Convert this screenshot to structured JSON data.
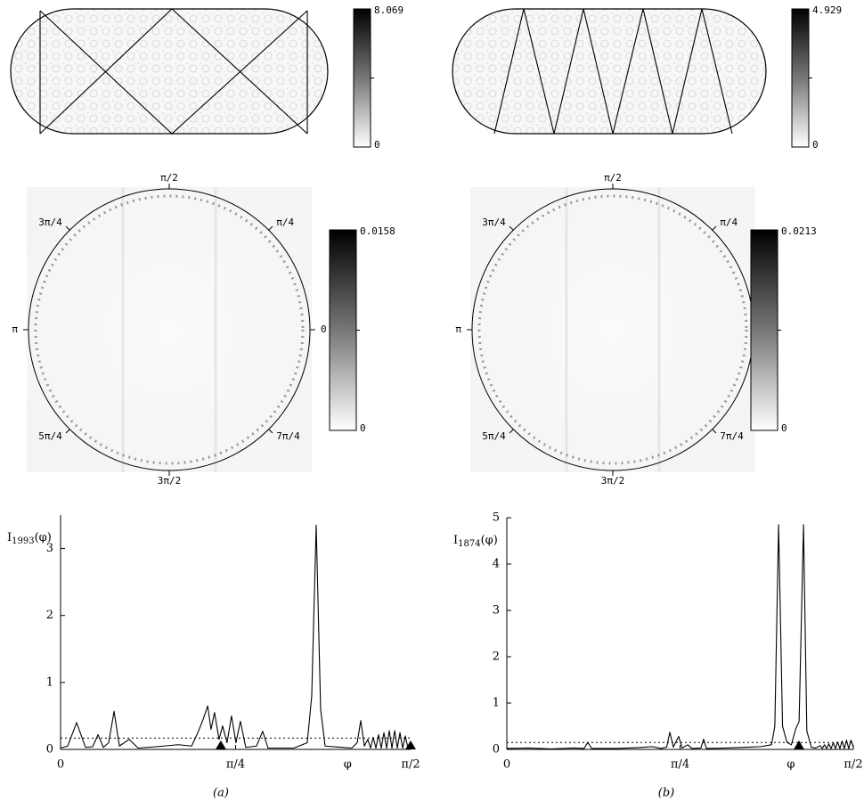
{
  "panels": [
    {
      "label": "(a)",
      "density_colorbar": {
        "max": 8.069,
        "min": 0
      },
      "polar_colorbar": {
        "max": 0.0158,
        "min": 0
      },
      "polar_labels": [
        0,
        "π/4",
        "π/2",
        "3π/4",
        "π",
        "5π/4",
        "3π/2",
        "7π/4"
      ]
    },
    {
      "label": "(b)",
      "density_colorbar": {
        "max": 4.929,
        "min": 0
      },
      "polar_colorbar": {
        "max": 0.0213,
        "min": 0
      },
      "polar_labels": [
        0,
        "π/4",
        "π/2",
        "3π/4",
        "π",
        "5π/4",
        "3π/2",
        "7π/4"
      ]
    }
  ],
  "chart_data": [
    {
      "type": "line",
      "ylabel": {
        "main": "I",
        "sub": "1993",
        "tail": "(φ)"
      },
      "xlabel": "φ",
      "xlim": [
        0,
        1.5708
      ],
      "ylim": [
        0,
        3.5
      ],
      "xticks": [
        0,
        {
          "value": 0.7854,
          "label": "π/4"
        },
        {
          "value": 1.5708,
          "label": "π/2"
        }
      ],
      "yticks": [
        0,
        1,
        2,
        3
      ],
      "reference_line": 0.17,
      "markers_x": [
        0.719,
        1.5708
      ],
      "x": [
        0,
        0.032,
        0.072,
        0.112,
        0.144,
        0.168,
        0.192,
        0.216,
        0.24,
        0.264,
        0.308,
        0.348,
        0.428,
        0.528,
        0.588,
        0.616,
        0.64,
        0.66,
        0.675,
        0.691,
        0.711,
        0.727,
        0.747,
        0.767,
        0.787,
        0.807,
        0.831,
        0.879,
        0.907,
        0.931,
        1.047,
        1.107,
        1.127,
        1.147,
        1.167,
        1.187,
        1.307,
        1.331,
        1.347,
        1.363,
        1.379,
        1.391,
        1.403,
        1.415,
        1.427,
        1.439,
        1.451,
        1.463,
        1.475,
        1.487,
        1.499,
        1.511,
        1.523,
        1.535,
        1.547,
        1.559,
        1.571
      ],
      "series": [
        {
          "color": "#000000",
          "values": [
            0.02,
            0.05,
            0.4,
            0.03,
            0.04,
            0.22,
            0.03,
            0.1,
            0.57,
            0.05,
            0.15,
            0.02,
            0.04,
            0.07,
            0.05,
            0.25,
            0.45,
            0.65,
            0.3,
            0.55,
            0.15,
            0.35,
            0.1,
            0.5,
            0.1,
            0.42,
            0.03,
            0.05,
            0.27,
            0.02,
            0.02,
            0.1,
            0.8,
            3.35,
            0.6,
            0.05,
            0.02,
            0.1,
            0.43,
            0.05,
            0.15,
            0.02,
            0.18,
            0.02,
            0.22,
            0.02,
            0.25,
            0.02,
            0.28,
            0.02,
            0.28,
            0.02,
            0.25,
            0.02,
            0.2,
            0.02,
            0.05
          ]
        }
      ]
    },
    {
      "type": "line",
      "ylabel": {
        "main": "I",
        "sub": "1874",
        "tail": "(φ)"
      },
      "xlabel": "φ",
      "xlim": [
        0,
        1.5708
      ],
      "ylim": [
        0,
        5
      ],
      "xticks": [
        0,
        {
          "value": 0.7854,
          "label": "π/4"
        },
        {
          "value": 1.5708,
          "label": "π/2"
        }
      ],
      "yticks": [
        0,
        1,
        2,
        3,
        4,
        5
      ],
      "reference_line": 0.15,
      "markers_x": [
        1.3245
      ],
      "x": [
        0,
        0.1,
        0.2,
        0.3,
        0.35,
        0.367,
        0.385,
        0.5,
        0.6,
        0.66,
        0.7,
        0.725,
        0.739,
        0.755,
        0.779,
        0.795,
        0.82,
        0.84,
        0.88,
        0.892,
        0.905,
        1.0,
        1.1,
        1.15,
        1.2,
        1.215,
        1.232,
        1.25,
        1.27,
        1.29,
        1.31,
        1.325,
        1.345,
        1.36,
        1.38,
        1.4,
        1.42,
        1.43,
        1.44,
        1.45,
        1.46,
        1.47,
        1.48,
        1.49,
        1.5,
        1.51,
        1.52,
        1.53,
        1.54,
        1.55,
        1.56,
        1.571
      ],
      "series": [
        {
          "color": "#000000",
          "values": [
            0.02,
            0.03,
            0.01,
            0.03,
            0.02,
            0.15,
            0.02,
            0.02,
            0.04,
            0.06,
            0.02,
            0.05,
            0.37,
            0.05,
            0.28,
            0.03,
            0.1,
            0.02,
            0.03,
            0.22,
            0.02,
            0.03,
            0.05,
            0.06,
            0.1,
            0.5,
            4.85,
            0.5,
            0.15,
            0.1,
            0.45,
            0.6,
            4.85,
            0.4,
            0.05,
            0.03,
            0.08,
            0.02,
            0.1,
            0.02,
            0.12,
            0.02,
            0.14,
            0.02,
            0.16,
            0.02,
            0.18,
            0.02,
            0.2,
            0.02,
            0.2,
            0.05
          ]
        }
      ]
    }
  ]
}
